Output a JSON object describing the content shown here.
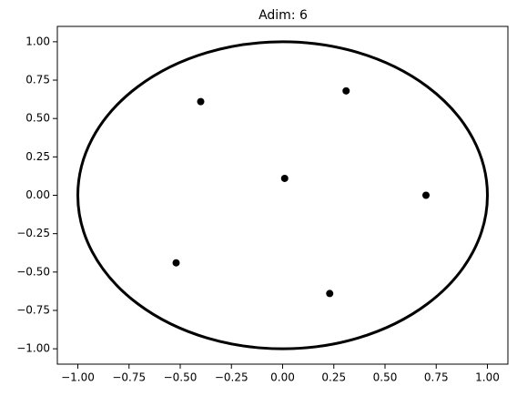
{
  "chart_data": {
    "type": "scatter",
    "title": "Adim: 6",
    "x": [
      -0.4,
      0.31,
      0.01,
      0.7,
      -0.52,
      0.23
    ],
    "values": [
      0.61,
      0.68,
      0.11,
      0.0,
      -0.44,
      -0.64
    ],
    "color": "#000000",
    "circle": {
      "cx": 0,
      "cy": 0,
      "r": 1,
      "color": "#000000"
    },
    "xlim": [
      -1.1,
      1.1
    ],
    "ylim": [
      -1.1,
      1.1
    ],
    "xticks": [
      {
        "value": -1,
        "label": "−1.00"
      },
      {
        "value": -0.75,
        "label": "−0.75"
      },
      {
        "value": -0.5,
        "label": "−0.50"
      },
      {
        "value": -0.25,
        "label": "−0.25"
      },
      {
        "value": 0,
        "label": "0.00"
      },
      {
        "value": 0.25,
        "label": "0.25"
      },
      {
        "value": 0.5,
        "label": "0.50"
      },
      {
        "value": 0.75,
        "label": "0.75"
      },
      {
        "value": 1,
        "label": "1.00"
      }
    ],
    "yticks": [
      {
        "value": -1,
        "label": "−1.00"
      },
      {
        "value": -0.75,
        "label": "−0.75"
      },
      {
        "value": -0.5,
        "label": "−0.50"
      },
      {
        "value": -0.25,
        "label": "−0.25"
      },
      {
        "value": 0,
        "label": "0.00"
      },
      {
        "value": 0.25,
        "label": "0.25"
      },
      {
        "value": 0.5,
        "label": "0.50"
      },
      {
        "value": 0.75,
        "label": "0.75"
      },
      {
        "value": 1,
        "label": "1.00"
      }
    ],
    "grid": false
  }
}
